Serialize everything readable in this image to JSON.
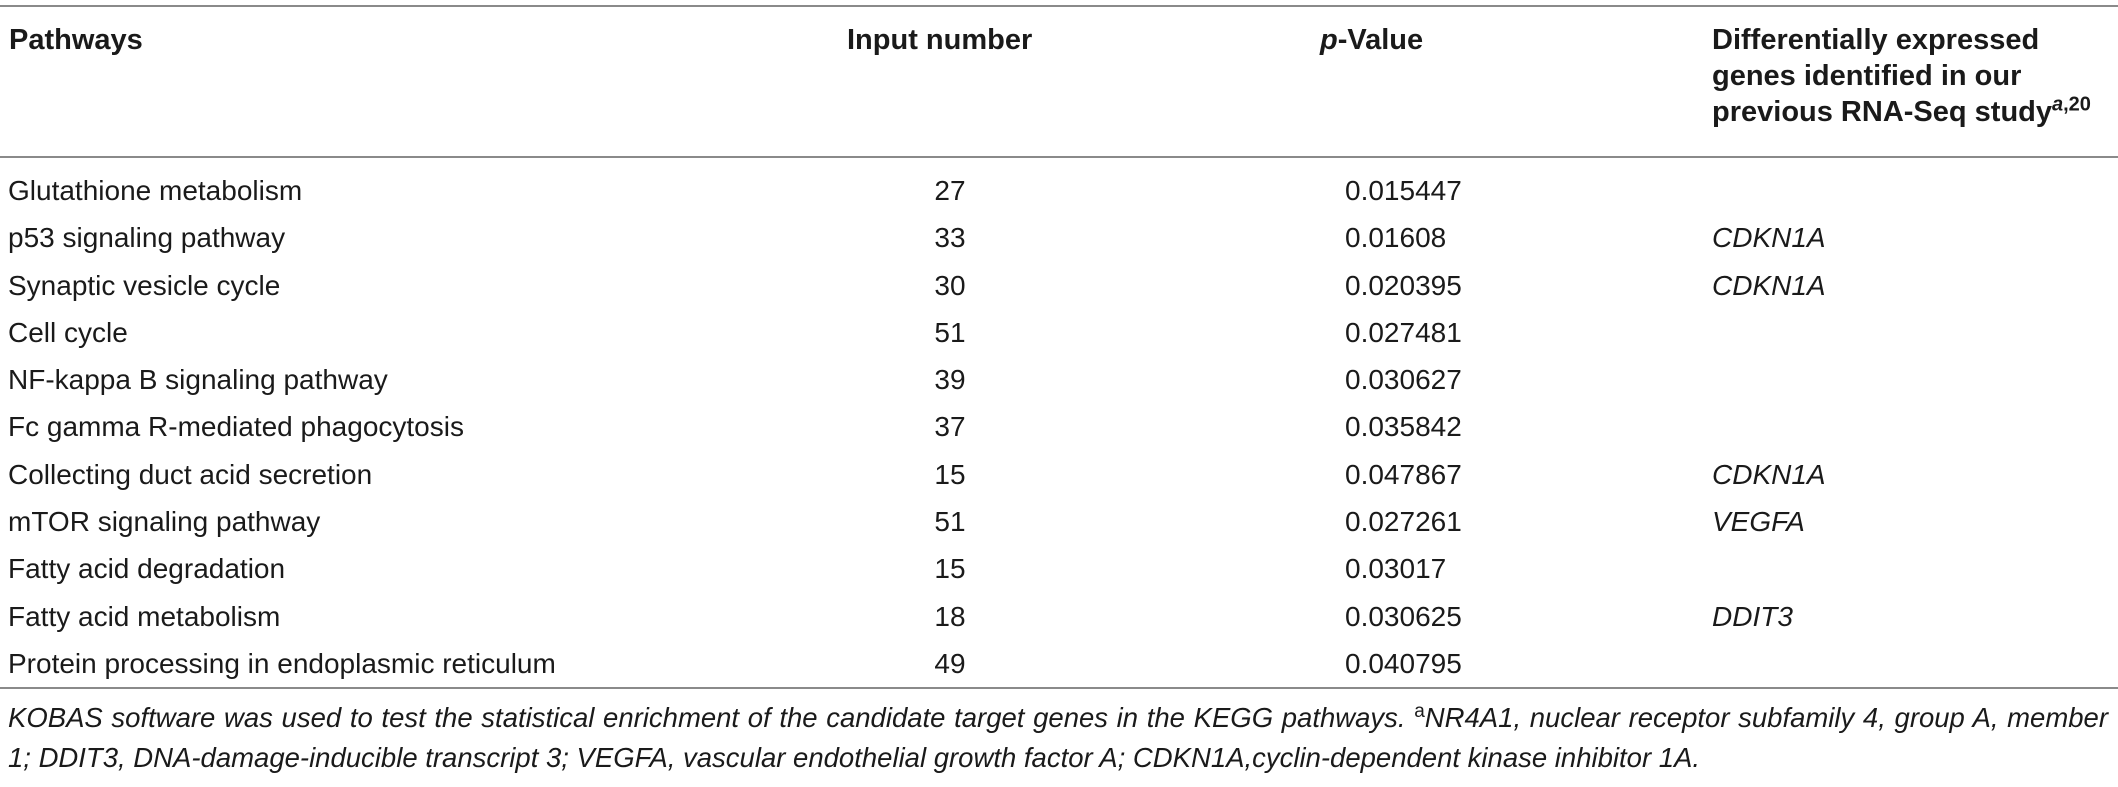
{
  "table": {
    "headers": {
      "pathways": "Pathways",
      "input_number": "Input number",
      "p_value_prefix": "p",
      "p_value_suffix": "-Value",
      "genes_text": "Differentially expressed genes identified in our previous RNA-Seq study",
      "genes_sup_letter": "a",
      "genes_sup_ref": ",20"
    },
    "rows": [
      {
        "pathway": "Glutathione metabolism",
        "input": "27",
        "p_value": "0.015447",
        "genes": ""
      },
      {
        "pathway": "p53 signaling pathway",
        "input": "33",
        "p_value": "0.01608",
        "genes": "CDKN1A"
      },
      {
        "pathway": "Synaptic vesicle cycle",
        "input": "30",
        "p_value": "0.020395",
        "genes": "CDKN1A"
      },
      {
        "pathway": "Cell cycle",
        "input": "51",
        "p_value": "0.027481",
        "genes": ""
      },
      {
        "pathway": "NF-kappa B signaling pathway",
        "input": "39",
        "p_value": "0.030627",
        "genes": ""
      },
      {
        "pathway": "Fc gamma R-mediated phagocytosis",
        "input": "37",
        "p_value": "0.035842",
        "genes": ""
      },
      {
        "pathway": "Collecting duct acid secretion",
        "input": "15",
        "p_value": "0.047867",
        "genes": "CDKN1A"
      },
      {
        "pathway": "mTOR signaling pathway",
        "input": "51",
        "p_value": "0.027261",
        "genes": "VEGFA"
      },
      {
        "pathway": "Fatty acid degradation",
        "input": "15",
        "p_value": "0.03017",
        "genes": ""
      },
      {
        "pathway": "Fatty acid metabolism",
        "input": "18",
        "p_value": "0.030625",
        "genes": "DDIT3"
      },
      {
        "pathway": "Protein processing in endoplasmic reticulum",
        "input": "49",
        "p_value": "0.040795",
        "genes": ""
      }
    ]
  },
  "footnote": {
    "part1": "KOBAS software was used to test the statistical enrichment of the candidate target genes in the KEGG pathways. ",
    "sup_mark": "a",
    "part2": "NR4A1, nuclear receptor subfamily 4, group A, member 1; DDIT3, DNA-damage-inducible transcript 3; VEGFA, vascular endothelial growth factor A; CDKN1A,cyclin-dependent kinase inhibitor 1A."
  }
}
